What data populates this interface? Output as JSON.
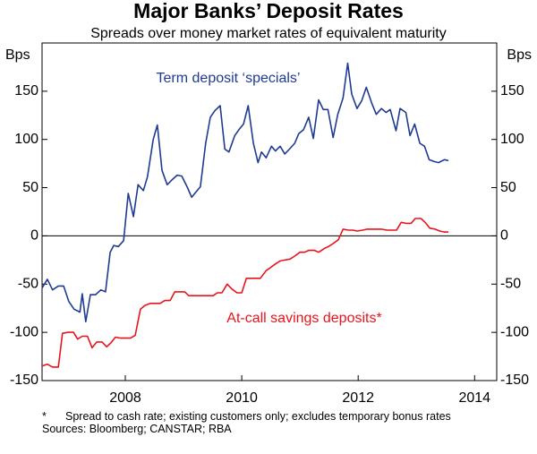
{
  "chart_data": {
    "type": "line",
    "title": "Major Banks’ Deposit Rates",
    "subtitle": "Spreads over money market rates of equivalent maturity",
    "ylabel": "Bps",
    "y2label": "Bps",
    "xlim": [
      2006.57,
      2014.38
    ],
    "xticks": [
      2008,
      2010,
      2012,
      2014
    ],
    "ylim": [
      -150,
      200
    ],
    "yticks": [
      -150,
      -100,
      -50,
      0,
      50,
      100,
      150
    ],
    "y2lim": [
      -150,
      200
    ],
    "y2ticks": [
      -150,
      -100,
      -50,
      0,
      50,
      100,
      150
    ],
    "zero_line": true,
    "series": [
      {
        "name": "Term deposit ‘specials’",
        "color": "#1f3a93",
        "x": [
          2006.57,
          2006.66,
          2006.75,
          2006.85,
          2006.94,
          2007.03,
          2007.12,
          2007.22,
          2007.26,
          2007.32,
          2007.4,
          2007.49,
          2007.58,
          2007.66,
          2007.74,
          2007.8,
          2007.88,
          2007.97,
          2008.05,
          2008.14,
          2008.22,
          2008.31,
          2008.38,
          2008.48,
          2008.55,
          2008.63,
          2008.72,
          2008.8,
          2008.89,
          2008.97,
          2009.06,
          2009.14,
          2009.22,
          2009.29,
          2009.38,
          2009.46,
          2009.54,
          2009.63,
          2009.71,
          2009.78,
          2009.88,
          2009.95,
          2010.03,
          2010.11,
          2010.2,
          2010.28,
          2010.34,
          2010.42,
          2010.51,
          2010.58,
          2010.66,
          2010.74,
          2010.82,
          2010.91,
          2010.98,
          2011.06,
          2011.15,
          2011.23,
          2011.32,
          2011.4,
          2011.48,
          2011.57,
          2011.65,
          2011.74,
          2011.82,
          2011.89,
          2011.98,
          2012.06,
          2012.14,
          2012.23,
          2012.31,
          2012.4,
          2012.48,
          2012.55,
          2012.65,
          2012.72,
          2012.82,
          2012.89,
          2012.97,
          2013.06,
          2013.14,
          2013.22,
          2013.31,
          2013.38,
          2013.48,
          2013.55
        ],
        "values": [
          -54,
          -45,
          -56,
          -52,
          -52,
          -68,
          -76,
          -79,
          -60,
          -89,
          -61,
          -61,
          -56,
          -58,
          -17,
          -10,
          -11,
          -5,
          44,
          20,
          53,
          47,
          61,
          100,
          115,
          68,
          53,
          58,
          63,
          62,
          51,
          40,
          46,
          51,
          96,
          123,
          130,
          135,
          90,
          87,
          104,
          110,
          116,
          135,
          96,
          76,
          87,
          81,
          93,
          88,
          93,
          85,
          90,
          96,
          106,
          110,
          123,
          101,
          141,
          131,
          131,
          102,
          126,
          143,
          179,
          147,
          132,
          140,
          154,
          138,
          126,
          132,
          128,
          131,
          109,
          132,
          128,
          104,
          116,
          96,
          93,
          79,
          77,
          76,
          79,
          78
        ]
      },
      {
        "name": "At-call savings deposits*",
        "color": "#e8141c",
        "x": [
          2006.57,
          2006.66,
          2006.75,
          2006.85,
          2006.92,
          2007.02,
          2007.11,
          2007.18,
          2007.26,
          2007.35,
          2007.43,
          2007.51,
          2007.6,
          2007.68,
          2007.75,
          2007.83,
          2007.92,
          2008.0,
          2008.09,
          2008.17,
          2008.26,
          2008.34,
          2008.43,
          2008.51,
          2008.6,
          2008.68,
          2008.77,
          2008.85,
          2008.92,
          2009.02,
          2009.09,
          2009.17,
          2009.26,
          2009.34,
          2009.42,
          2009.51,
          2009.58,
          2009.66,
          2009.75,
          2009.83,
          2009.92,
          2010.0,
          2010.08,
          2010.17,
          2010.25,
          2010.32,
          2010.42,
          2010.49,
          2010.58,
          2010.66,
          2010.74,
          2010.83,
          2010.91,
          2011.0,
          2011.08,
          2011.15,
          2011.25,
          2011.32,
          2011.42,
          2011.49,
          2011.57,
          2011.66,
          2011.74,
          2011.83,
          2011.91,
          2011.98,
          2012.08,
          2012.15,
          2012.25,
          2012.32,
          2012.4,
          2012.49,
          2012.57,
          2012.66,
          2012.74,
          2012.82,
          2012.91,
          2012.98,
          2013.08,
          2013.15,
          2013.23,
          2013.32,
          2013.4,
          2013.48,
          2013.55
        ],
        "values": [
          -135,
          -133,
          -136,
          -136,
          -101,
          -100,
          -100,
          -107,
          -104,
          -104,
          -116,
          -110,
          -110,
          -115,
          -111,
          -105,
          -106,
          -106,
          -106,
          -103,
          -76,
          -72,
          -70,
          -70,
          -70,
          -67,
          -67,
          -58,
          -58,
          -58,
          -62,
          -62,
          -62,
          -62,
          -62,
          -62,
          -59,
          -59,
          -50,
          -55,
          -59,
          -59,
          -44,
          -44,
          -44,
          -44,
          -36,
          -33,
          -29,
          -26,
          -25,
          -24,
          -21,
          -17,
          -17,
          -15,
          -15,
          -17,
          -13,
          -11,
          -8,
          -4,
          7,
          6,
          6,
          5,
          6,
          7,
          7,
          7,
          7,
          6,
          6,
          6,
          14,
          13,
          13,
          18,
          18,
          14,
          8,
          7,
          5,
          4,
          4
        ]
      }
    ],
    "footnote_marker": "*",
    "footnote": "Spread to cash rate; existing customers only; excludes temporary bonus rates",
    "source": "Sources: Bloomberg; CANSTAR; RBA"
  }
}
